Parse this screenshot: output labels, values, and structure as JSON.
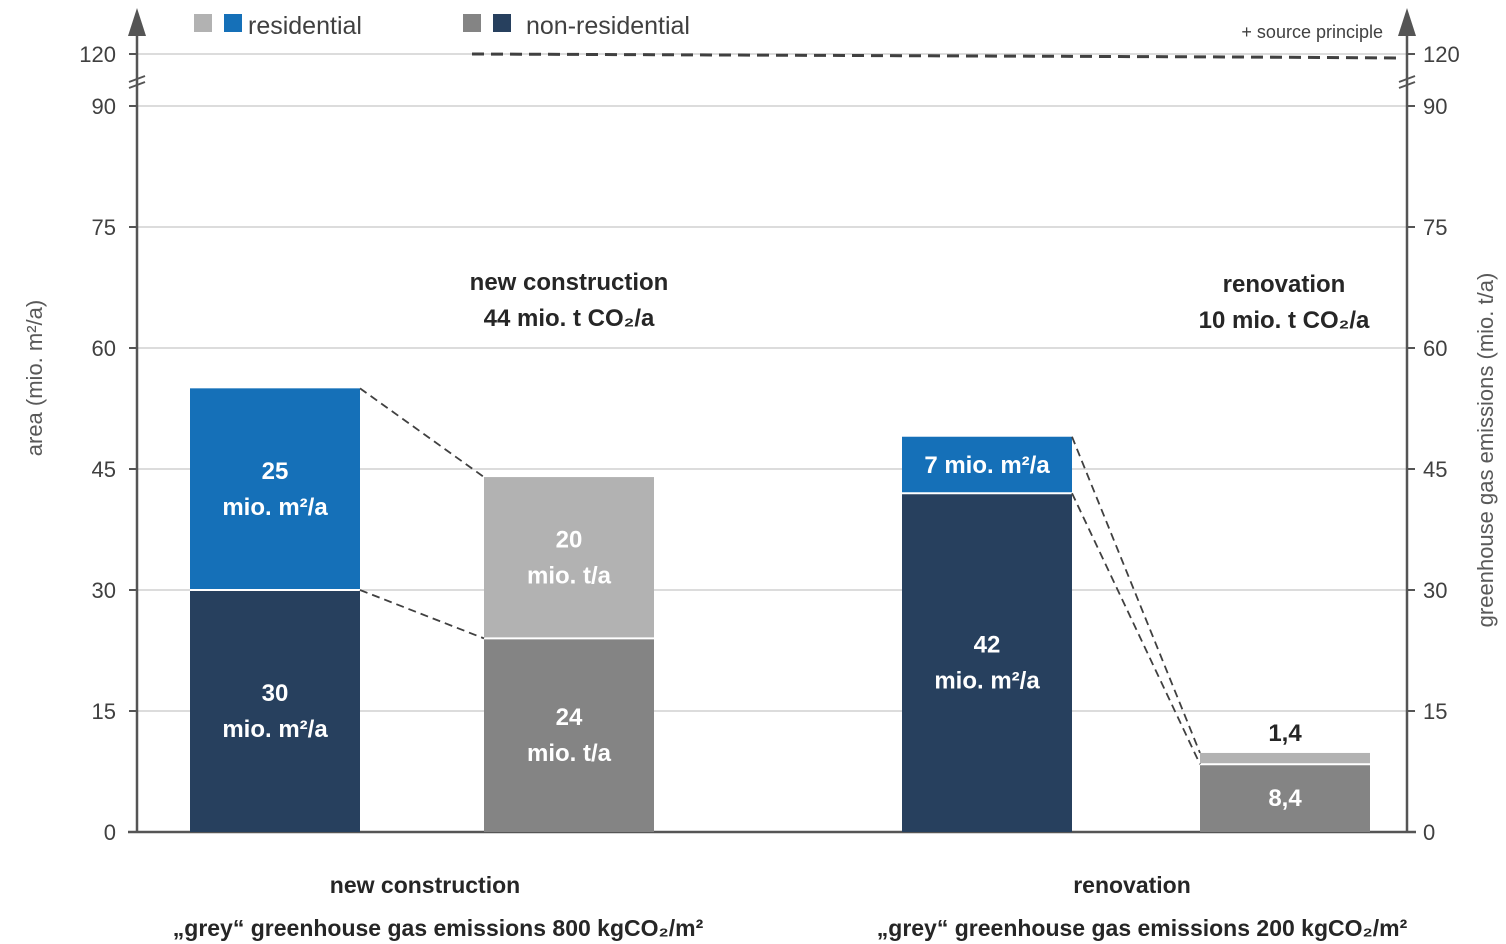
{
  "chart_data": {
    "type": "bar",
    "stacked": true,
    "grid": true,
    "colors": {
      "residential_area": "#1570b8",
      "non_residential_area": "#27405e",
      "residential_emissions": "#b2b2b2",
      "non_residential_emissions": "#848484",
      "grid": "#c8c8c8",
      "axis": "#555555"
    },
    "legend": {
      "placement": "top",
      "items": [
        {
          "label": "residential",
          "colors": [
            "#b2b2b2",
            "#1570b8"
          ]
        },
        {
          "label": "non-residential",
          "colors": [
            "#848484",
            "#27405e"
          ]
        }
      ]
    },
    "left_axis": {
      "label": "area (mio. m²/a)",
      "ticks": [
        "0",
        "15",
        "30",
        "45",
        "60",
        "75",
        "90",
        "120"
      ]
    },
    "right_axis": {
      "label": "greenhouse gas emissions (mio. t/a)",
      "ticks": [
        "0",
        "15",
        "30",
        "45",
        "60",
        "75",
        "90",
        "120"
      ]
    },
    "source_principle": {
      "label": "+ source principle",
      "value": 120
    },
    "groups": [
      {
        "title_lines": [
          "new construction",
          "„grey“ greenhouse gas emissions 800 kgCO₂/m²"
        ],
        "total_lines": [
          "new construction",
          "44 mio. t CO₂/a"
        ],
        "bars": [
          {
            "kind": "area",
            "segments": [
              {
                "series": "non-residential",
                "value": 30,
                "label_lines": [
                  "30",
                  "mio. m²/a"
                ]
              },
              {
                "series": "residential",
                "value": 25,
                "label_lines": [
                  "25",
                  "mio. m²/a"
                ]
              }
            ]
          },
          {
            "kind": "emissions",
            "segments": [
              {
                "series": "non-residential",
                "value": 24,
                "label_lines": [
                  "24",
                  "mio. t/a"
                ]
              },
              {
                "series": "residential",
                "value": 20,
                "label_lines": [
                  "20",
                  "mio. t/a"
                ]
              }
            ]
          }
        ]
      },
      {
        "title_lines": [
          "renovation",
          "„grey“ greenhouse gas emissions 200 kgCO₂/m²"
        ],
        "total_lines": [
          "renovation",
          "10 mio. t CO₂/a"
        ],
        "bars": [
          {
            "kind": "area",
            "segments": [
              {
                "series": "non-residential",
                "value": 42,
                "label_lines": [
                  "42",
                  "mio. m²/a"
                ]
              },
              {
                "series": "residential",
                "value": 7,
                "label_lines": [
                  "7 mio. m²/a"
                ]
              }
            ]
          },
          {
            "kind": "emissions",
            "segments": [
              {
                "series": "non-residential",
                "value": 8.4,
                "label_lines": [
                  "8,4"
                ]
              },
              {
                "series": "residential",
                "value": 1.4,
                "label_lines": [
                  "1,4"
                ],
                "label_outside": true
              }
            ]
          }
        ]
      }
    ]
  }
}
